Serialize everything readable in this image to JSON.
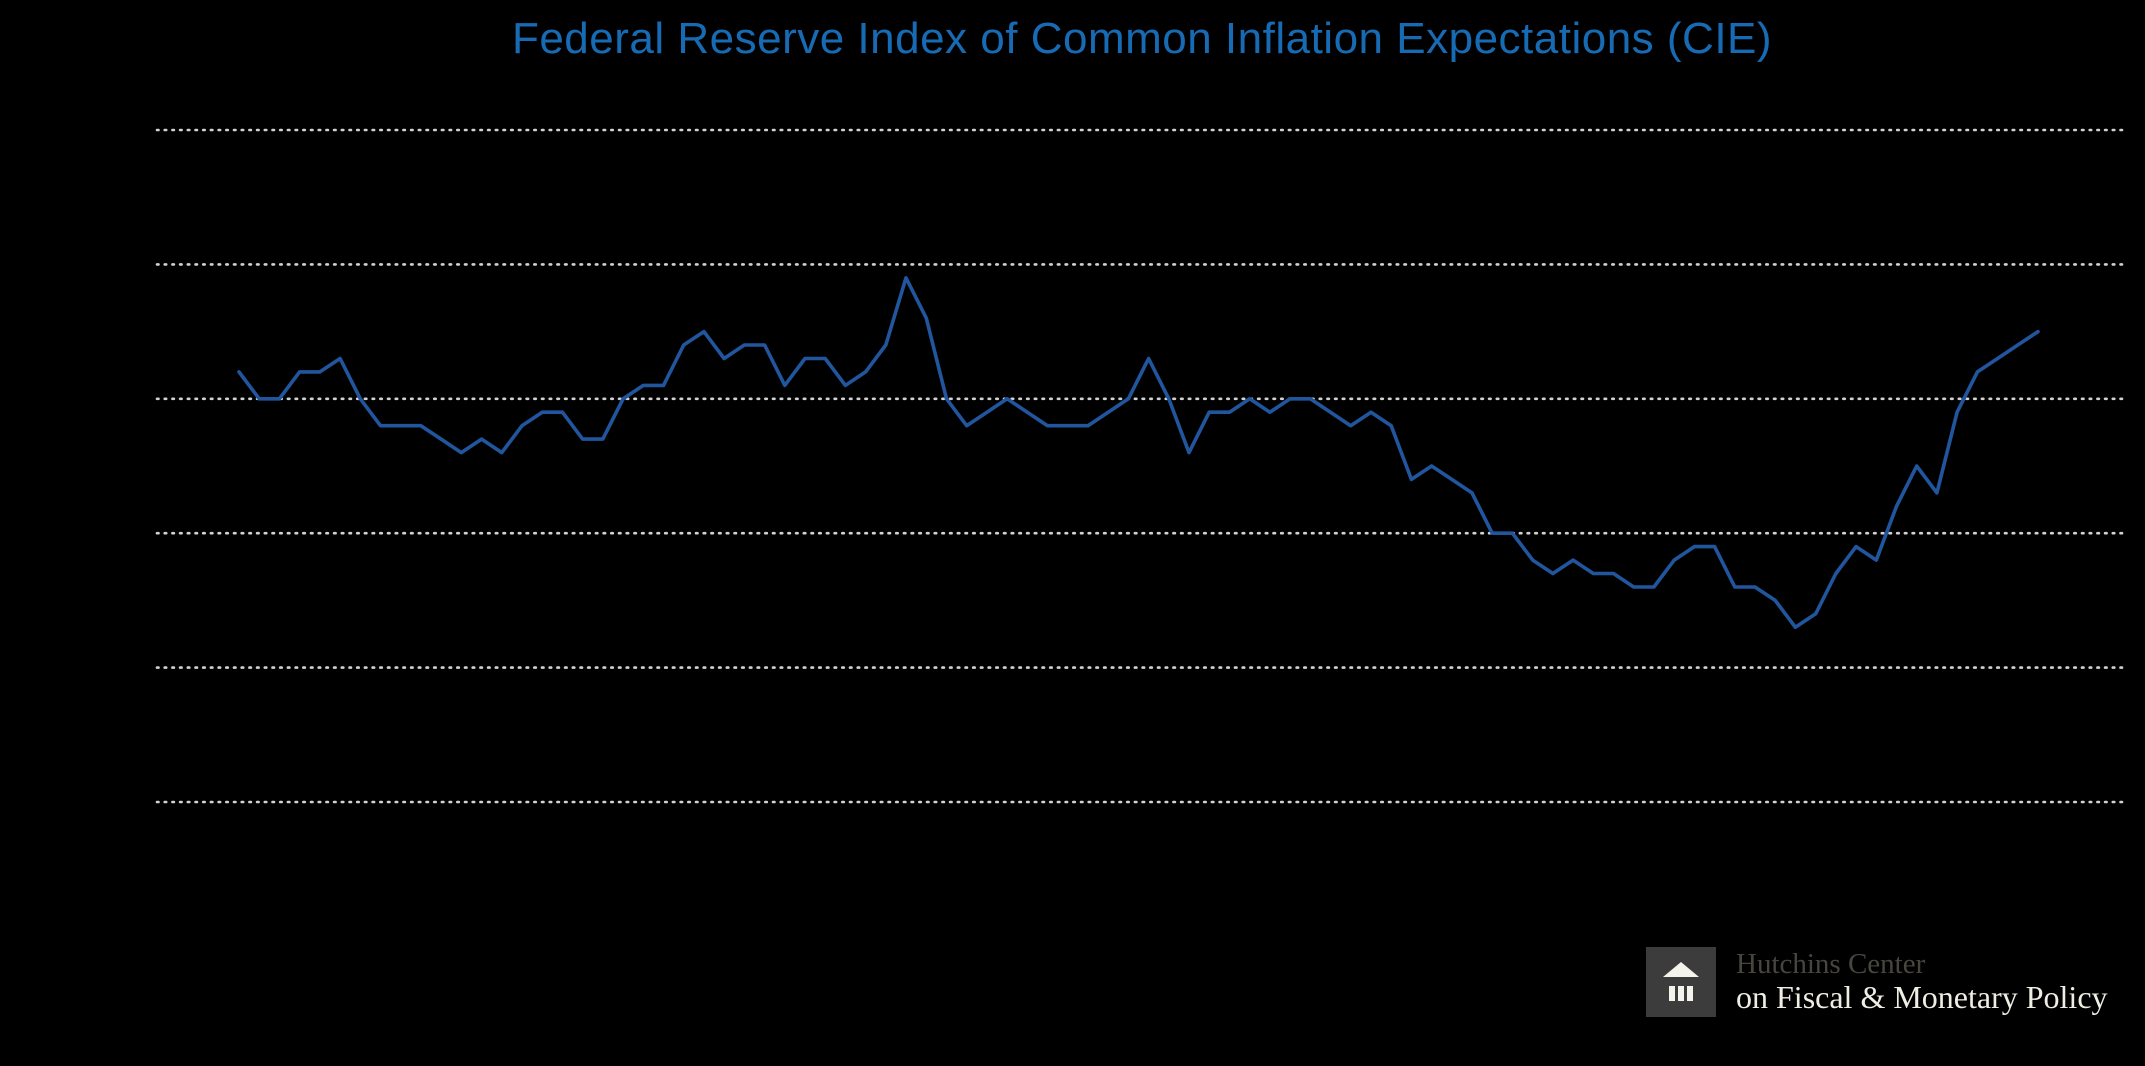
{
  "page": {
    "background": "#000000"
  },
  "chart_data": {
    "type": "line",
    "title": "Federal Reserve Index of Common Inflation Expectations (CIE)",
    "title_color": "#176bb4",
    "line_color": "#21569e",
    "gridline_color": "#d2d2d2",
    "grid": "horizontal dotted gridlines only",
    "legend": "none",
    "x_axis": {
      "labels_visible": false,
      "start": "1999 Q1",
      "end": "2021 Q2",
      "frequency": "quarterly"
    },
    "y_axis": {
      "labels_visible": false,
      "ylim_estimated": [
        1.9,
        2.5
      ]
    },
    "y_gridlines_estimated": [
      2.45,
      2.35,
      2.25,
      2.15,
      2.05,
      1.95
    ],
    "values": [
      2.27,
      2.25,
      2.25,
      2.27,
      2.27,
      2.28,
      2.25,
      2.23,
      2.23,
      2.23,
      2.22,
      2.21,
      2.22,
      2.21,
      2.23,
      2.24,
      2.24,
      2.22,
      2.22,
      2.25,
      2.26,
      2.26,
      2.29,
      2.3,
      2.28,
      2.29,
      2.29,
      2.26,
      2.28,
      2.28,
      2.26,
      2.27,
      2.29,
      2.34,
      2.31,
      2.25,
      2.23,
      2.24,
      2.25,
      2.24,
      2.23,
      2.23,
      2.23,
      2.24,
      2.25,
      2.28,
      2.25,
      2.21,
      2.24,
      2.24,
      2.25,
      2.24,
      2.25,
      2.25,
      2.24,
      2.23,
      2.24,
      2.23,
      2.19,
      2.2,
      2.19,
      2.18,
      2.15,
      2.15,
      2.13,
      2.12,
      2.13,
      2.12,
      2.12,
      2.11,
      2.11,
      2.13,
      2.14,
      2.14,
      2.11,
      2.11,
      2.1,
      2.08,
      2.09,
      2.12,
      2.14,
      2.13,
      2.17,
      2.2,
      2.18,
      2.24,
      2.27,
      2.28,
      2.29,
      2.3
    ]
  },
  "logo": {
    "line1": "Hutchins Center",
    "line2": "on Fiscal & Monetary Policy",
    "line1_color": "#47463e",
    "line2_color": "#efeee4",
    "mark_background": "#3c3c3c",
    "mark_icon_color": "#f4f3ec"
  }
}
